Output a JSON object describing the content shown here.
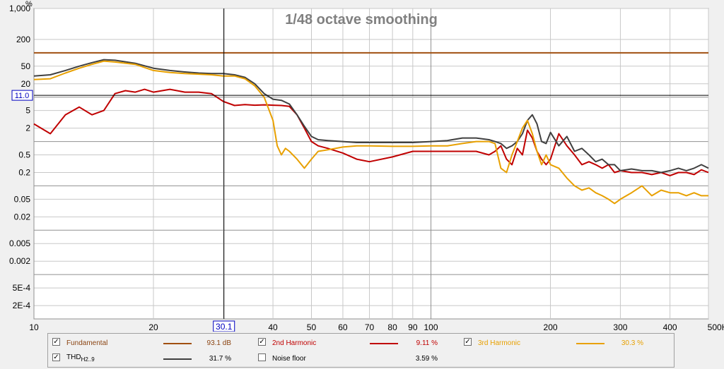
{
  "chart_data": {
    "type": "line",
    "title": "1/48 octave smoothing",
    "yunit": "%",
    "xunit": "Hz",
    "xscale": "log",
    "yscale": "log",
    "xlim": [
      10,
      500
    ],
    "ylim": [
      0.0001,
      1000
    ],
    "x_ticks": [
      10,
      20,
      30,
      40,
      50,
      60,
      70,
      80,
      90,
      100,
      200,
      300,
      400,
      500
    ],
    "x_tick_labels": [
      "10",
      "20",
      "",
      "40",
      "50",
      "60",
      "70",
      "80",
      "90",
      "100",
      "200",
      "300",
      "400",
      "500Hz"
    ],
    "y_ticks": [
      1000,
      200,
      50,
      20,
      5,
      2,
      0.5,
      0.2,
      0.05,
      0.02,
      0.005,
      0.002,
      0.0005,
      0.0002
    ],
    "y_tick_labels": [
      "1,000",
      "200",
      "50",
      "20",
      "5",
      "2",
      "0.5",
      "0.2",
      "0.05",
      "0.02",
      "0.005",
      "0.002",
      "5E-4",
      "2E-4"
    ],
    "cursor": {
      "x": 30.1,
      "y": 11.0,
      "x_label": "30.1",
      "y_label": "11.0"
    },
    "series": [
      {
        "name": "Fundamental",
        "color": "#a05010",
        "x": [
          10,
          500
        ],
        "y": [
          100,
          100
        ]
      },
      {
        "name": "THD",
        "color": "#404040",
        "x": [
          10,
          11,
          12,
          13,
          14,
          15,
          16,
          18,
          20,
          22,
          24,
          26,
          28,
          30,
          32,
          34,
          36,
          38,
          40,
          42,
          44,
          46,
          48,
          50,
          52,
          55,
          60,
          65,
          70,
          80,
          90,
          100,
          110,
          120,
          130,
          140,
          145,
          150,
          155,
          160,
          165,
          170,
          175,
          180,
          185,
          190,
          195,
          200,
          210,
          220,
          230,
          240,
          250,
          260,
          270,
          280,
          290,
          300,
          320,
          340,
          360,
          380,
          400,
          420,
          440,
          460,
          480,
          500
        ],
        "y": [
          30,
          32,
          40,
          50,
          60,
          70,
          68,
          58,
          45,
          40,
          37,
          35,
          34,
          34,
          32,
          28,
          20,
          12,
          9,
          8.5,
          7,
          4,
          2.2,
          1.3,
          1.1,
          1.05,
          1.0,
          0.95,
          0.95,
          0.95,
          0.95,
          1.0,
          1.05,
          1.2,
          1.2,
          1.1,
          1.0,
          0.9,
          0.7,
          0.8,
          1.0,
          1.5,
          3.0,
          4.0,
          2.5,
          1.0,
          0.9,
          1.6,
          0.8,
          1.3,
          0.6,
          0.7,
          0.5,
          0.35,
          0.4,
          0.3,
          0.3,
          0.22,
          0.24,
          0.22,
          0.22,
          0.2,
          0.22,
          0.25,
          0.22,
          0.25,
          0.3,
          0.25
        ]
      },
      {
        "name": "2nd Harmonic",
        "color": "#c00000",
        "x": [
          10,
          11,
          12,
          13,
          14,
          15,
          16,
          17,
          18,
          19,
          20,
          22,
          24,
          26,
          28,
          30,
          32,
          34,
          36,
          38,
          40,
          42,
          44,
          46,
          48,
          50,
          52,
          55,
          60,
          65,
          70,
          80,
          90,
          100,
          110,
          120,
          130,
          140,
          145,
          150,
          155,
          160,
          165,
          170,
          175,
          180,
          185,
          190,
          195,
          200,
          210,
          220,
          230,
          240,
          250,
          260,
          270,
          280,
          290,
          300,
          320,
          340,
          360,
          380,
          400,
          420,
          440,
          460,
          480,
          500
        ],
        "y": [
          2.5,
          1.5,
          4,
          6,
          4,
          5,
          12,
          14,
          13,
          15,
          13,
          15,
          13,
          13,
          12,
          8,
          6.5,
          6.8,
          6.6,
          6.7,
          6.6,
          6.5,
          6.2,
          4,
          2,
          1.0,
          0.8,
          0.7,
          0.55,
          0.4,
          0.35,
          0.45,
          0.6,
          0.6,
          0.6,
          0.6,
          0.6,
          0.5,
          0.6,
          0.8,
          0.4,
          0.3,
          0.7,
          0.5,
          1.8,
          1.2,
          0.6,
          0.4,
          0.3,
          0.4,
          1.5,
          0.8,
          0.5,
          0.3,
          0.35,
          0.3,
          0.25,
          0.3,
          0.2,
          0.22,
          0.2,
          0.2,
          0.18,
          0.2,
          0.17,
          0.2,
          0.2,
          0.18,
          0.23,
          0.2
        ]
      },
      {
        "name": "3rd Harmonic",
        "color": "#e8a000",
        "x": [
          10,
          11,
          12,
          13,
          14,
          15,
          16,
          18,
          20,
          22,
          24,
          26,
          28,
          30,
          32,
          34,
          36,
          38,
          40,
          41,
          42,
          43,
          44,
          46,
          48,
          50,
          52,
          55,
          60,
          65,
          70,
          80,
          90,
          100,
          110,
          120,
          130,
          140,
          145,
          150,
          155,
          160,
          165,
          170,
          175,
          180,
          185,
          190,
          195,
          200,
          210,
          220,
          230,
          240,
          250,
          260,
          270,
          280,
          290,
          300,
          320,
          340,
          360,
          380,
          400,
          420,
          440,
          460,
          480,
          500
        ],
        "y": [
          25,
          26,
          35,
          45,
          55,
          65,
          62,
          55,
          40,
          36,
          34,
          33,
          32,
          30,
          30,
          26,
          18,
          10,
          3.0,
          0.8,
          0.5,
          0.7,
          0.6,
          0.4,
          0.25,
          0.4,
          0.6,
          0.65,
          0.75,
          0.8,
          0.8,
          0.78,
          0.78,
          0.8,
          0.8,
          0.9,
          1.0,
          1.0,
          0.9,
          0.25,
          0.2,
          0.5,
          1.0,
          2.0,
          3.0,
          1.5,
          0.6,
          0.3,
          0.5,
          0.3,
          0.25,
          0.15,
          0.1,
          0.08,
          0.09,
          0.07,
          0.06,
          0.05,
          0.04,
          0.05,
          0.07,
          0.1,
          0.06,
          0.08,
          0.07,
          0.07,
          0.06,
          0.07,
          0.06,
          0.06
        ]
      }
    ]
  },
  "legend": {
    "items": [
      {
        "label": "Fundamental",
        "value": "93.1 dB",
        "checked": "✓",
        "color": "#a05010",
        "label_color": "#8b4513"
      },
      {
        "label": "2nd Harmonic",
        "value": "9.11 %",
        "checked": "✓",
        "color": "#c00000",
        "label_color": "#c00000"
      },
      {
        "label": "3rd Harmonic",
        "value": "30.3 %",
        "checked": "✓",
        "color": "#e8a000",
        "label_color": "#e8a000"
      },
      {
        "label": "THD",
        "sub": "H2..9",
        "value": "31.7 %",
        "checked": "✓",
        "color": "#404040",
        "label_color": "#000000"
      },
      {
        "label": "Noise floor",
        "value": "3.59 %",
        "checked": "",
        "color": "#a0a0a0",
        "label_color": "#000000"
      }
    ]
  }
}
